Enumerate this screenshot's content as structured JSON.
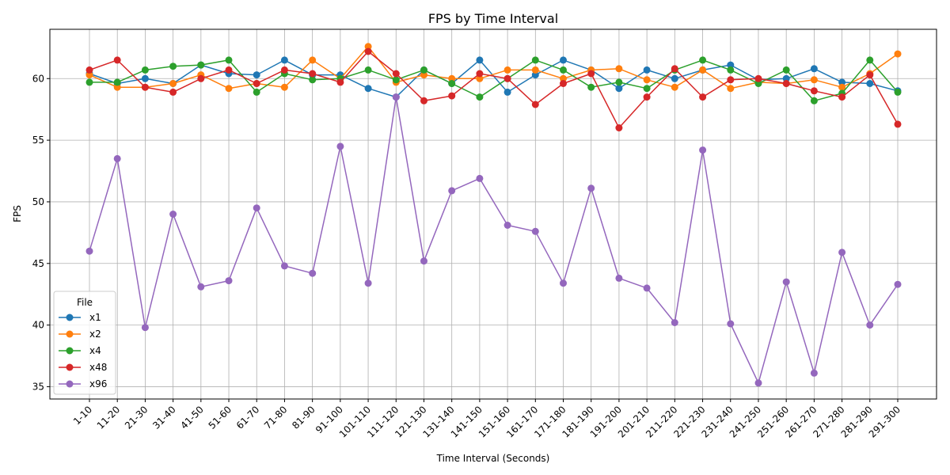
{
  "chart_data": {
    "type": "line",
    "title": "FPS by Time Interval",
    "xlabel": "Time Interval (Seconds)",
    "ylabel": "FPS",
    "ylim": [
      34,
      64
    ],
    "yticks": [
      35,
      40,
      45,
      50,
      55,
      60
    ],
    "grid": true,
    "legend": {
      "title": "File",
      "placement": "lower-left"
    },
    "categories": [
      "1-10",
      "11-20",
      "21-30",
      "31-40",
      "41-50",
      "51-60",
      "61-70",
      "71-80",
      "81-90",
      "91-100",
      "101-110",
      "111-120",
      "121-130",
      "131-140",
      "141-150",
      "151-160",
      "161-170",
      "171-180",
      "181-190",
      "191-200",
      "201-210",
      "211-220",
      "221-230",
      "231-240",
      "241-250",
      "251-260",
      "261-270",
      "271-280",
      "281-290",
      "291-300"
    ],
    "series": [
      {
        "name": "x1",
        "color": "#1f77b4",
        "values": [
          60.4,
          59.6,
          60.0,
          59.6,
          61.1,
          60.4,
          60.3,
          61.5,
          60.3,
          60.3,
          59.2,
          58.5,
          60.7,
          59.6,
          61.5,
          58.9,
          60.3,
          61.5,
          60.7,
          59.2,
          60.7,
          60.0,
          60.7,
          61.1,
          59.9,
          60.0,
          60.8,
          59.7,
          59.6,
          59.0
        ]
      },
      {
        "name": "x2",
        "color": "#ff7f0e",
        "values": [
          60.3,
          59.3,
          59.3,
          59.6,
          60.3,
          59.2,
          59.6,
          59.3,
          61.5,
          60.0,
          62.6,
          59.7,
          60.3,
          60.0,
          60.0,
          60.7,
          60.7,
          60.0,
          60.7,
          60.8,
          59.9,
          59.3,
          60.7,
          59.2,
          59.7,
          59.6,
          59.9,
          59.3,
          60.4,
          62.0
        ]
      },
      {
        "name": "x4",
        "color": "#2ca02c",
        "values": [
          59.7,
          59.7,
          60.7,
          61.0,
          61.1,
          61.5,
          58.9,
          60.4,
          59.9,
          60.0,
          60.7,
          59.9,
          60.7,
          59.6,
          58.5,
          60.0,
          61.5,
          60.7,
          59.3,
          59.7,
          59.2,
          60.7,
          61.5,
          60.7,
          59.6,
          60.7,
          58.2,
          58.8,
          61.5,
          58.9
        ]
      },
      {
        "name": "x48",
        "color": "#d62728",
        "values": [
          60.7,
          61.5,
          59.3,
          58.9,
          60.0,
          60.7,
          59.6,
          60.7,
          60.4,
          59.7,
          62.2,
          60.4,
          58.2,
          58.6,
          60.4,
          60.0,
          57.9,
          59.6,
          60.4,
          56.0,
          58.5,
          60.8,
          58.5,
          59.9,
          60.0,
          59.6,
          59.0,
          58.5,
          60.3,
          56.3
        ]
      },
      {
        "name": "x96",
        "color": "#9467bd",
        "values": [
          46.0,
          53.5,
          39.8,
          49.0,
          43.1,
          43.6,
          49.5,
          44.8,
          44.2,
          54.5,
          43.4,
          58.5,
          45.2,
          50.9,
          51.9,
          48.1,
          47.6,
          43.4,
          51.1,
          43.8,
          43.0,
          40.2,
          54.2,
          40.1,
          35.3,
          43.5,
          36.1,
          45.9,
          40.0,
          43.3
        ]
      }
    ]
  }
}
